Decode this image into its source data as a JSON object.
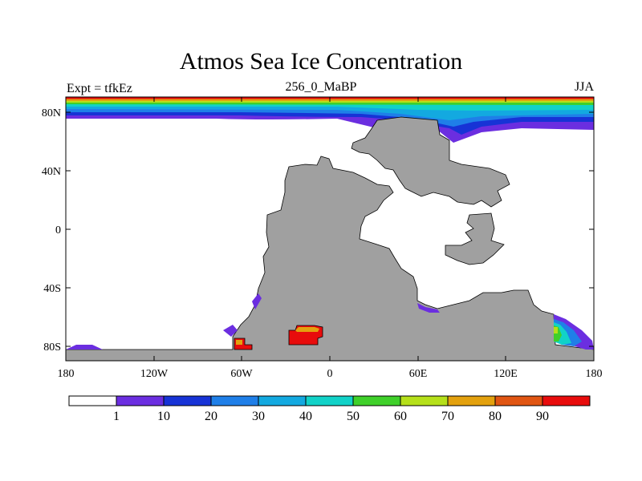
{
  "header": {
    "title": "Atmos Sea Ice Concentration",
    "left": "Expt = tfkEz",
    "center": "256_0_MaBP",
    "right": "JJA"
  },
  "axes": {
    "x_ticks": [
      "180",
      "120W",
      "60W",
      "0",
      "60E",
      "120E",
      "180"
    ],
    "y_ticks": [
      "80N",
      "40N",
      "0",
      "40S",
      "80S"
    ]
  },
  "colorbar": {
    "labels": [
      "1",
      "10",
      "20",
      "30",
      "40",
      "50",
      "60",
      "70",
      "80",
      "90"
    ],
    "colors": [
      "#ffffff",
      "#6b2ee0",
      "#1733d6",
      "#1f7fe8",
      "#13a9e0",
      "#11d2c8",
      "#3fd02a",
      "#b5e01a",
      "#e3a10e",
      "#e05512",
      "#e80c0c"
    ]
  },
  "colors": {
    "land": "#a0a0a0",
    "ocean": "#ffffff"
  }
}
